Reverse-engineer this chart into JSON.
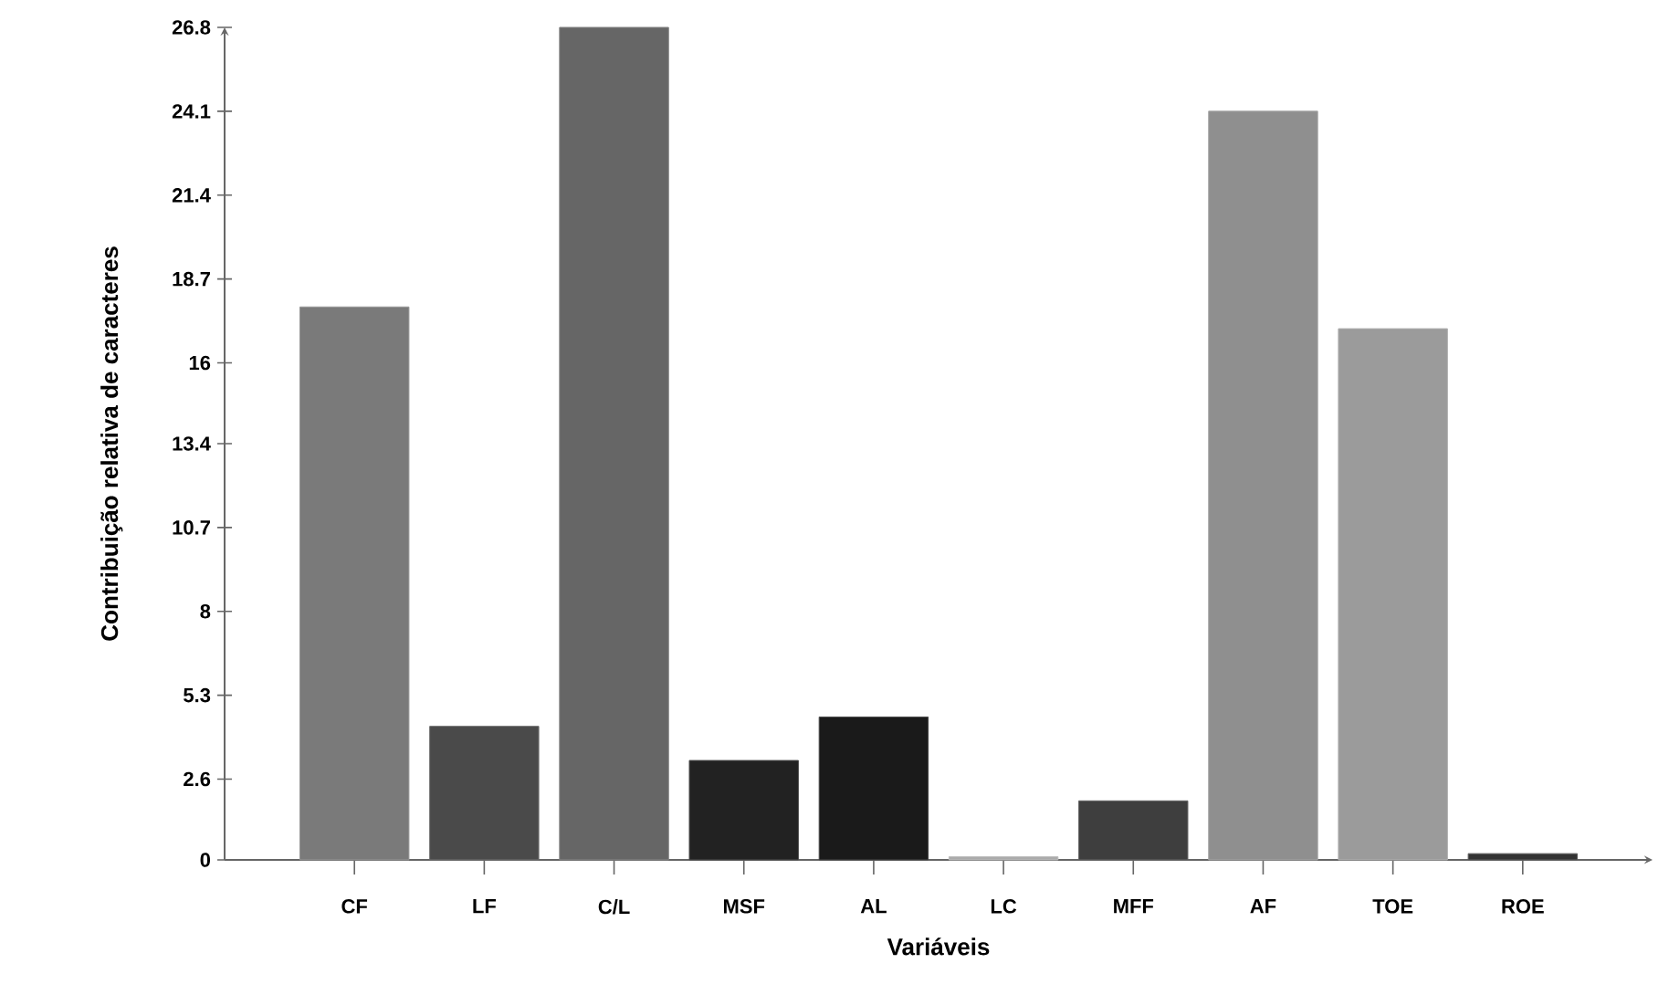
{
  "chart_data": {
    "type": "bar",
    "xlabel": "Variáveis",
    "ylabel": "Contribuição relativa de caracteres",
    "categories": [
      "CF",
      "LF",
      "C/L",
      "MSF",
      "AL",
      "LC",
      "MFF",
      "AF",
      "TOE",
      "ROE"
    ],
    "values": [
      17.8,
      4.3,
      26.8,
      3.2,
      4.6,
      0.1,
      1.9,
      24.1,
      17.1,
      0.2
    ],
    "colors": [
      "#7a7a7a",
      "#4a4a4a",
      "#666666",
      "#222222",
      "#1a1a1a",
      "#aaaaaa",
      "#3e3e3e",
      "#8f8f8f",
      "#9b9b9b",
      "#333333"
    ],
    "ylim": [
      0,
      26.8
    ],
    "yticks": [
      0,
      2.6,
      5.3,
      8,
      10.7,
      13.4,
      16,
      18.7,
      21.4,
      24.1,
      26.8
    ],
    "grid": false
  }
}
